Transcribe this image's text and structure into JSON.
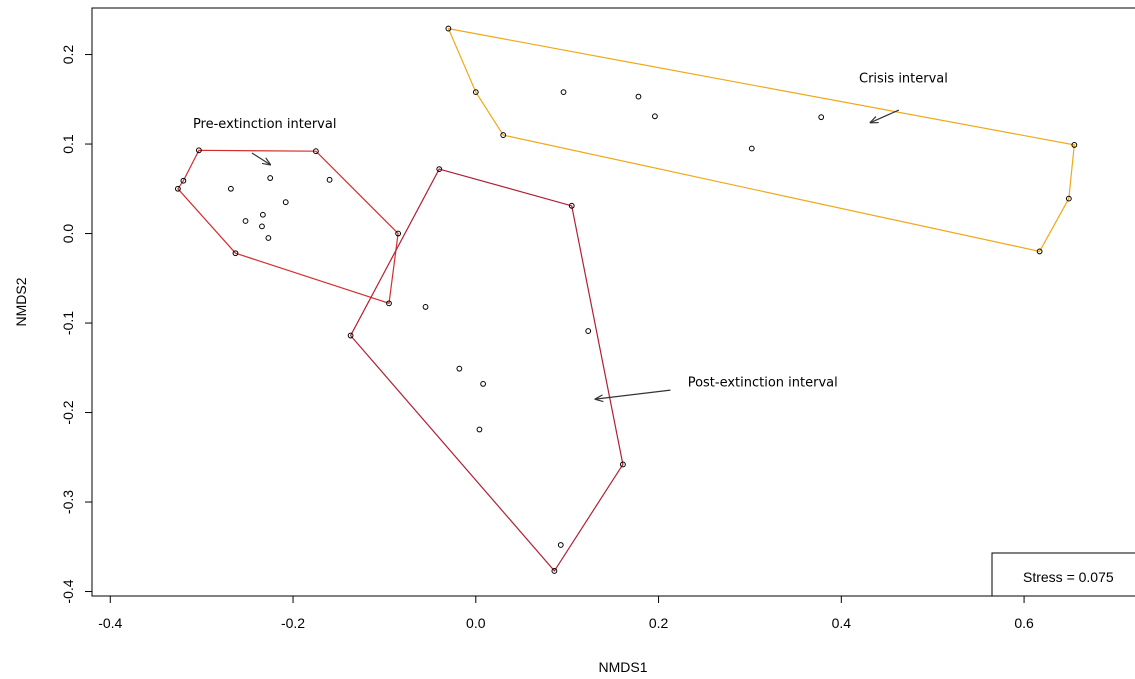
{
  "chart_data": {
    "type": "scatter",
    "title": "",
    "xlabel": "NMDS1",
    "ylabel": "NMDS2",
    "xlim": [
      -0.42,
      0.74
    ],
    "ylim": [
      -0.405,
      0.252
    ],
    "x_ticks": [
      -0.4,
      -0.2,
      0.0,
      0.2,
      0.4,
      0.6
    ],
    "x_tick_labels": [
      "-0.4",
      "-0.2",
      "0.0",
      "0.2",
      "0.4",
      "0.6"
    ],
    "y_ticks": [
      -0.4,
      -0.3,
      -0.2,
      -0.1,
      0.0,
      0.1,
      0.2
    ],
    "y_tick_labels": [
      "-0.4",
      "-0.3",
      "-0.2",
      "-0.1",
      "0.0",
      "0.1",
      "0.2"
    ],
    "grid": false,
    "stress_label": "Stress = 0.075",
    "series": [
      {
        "label": "Pre-extinction interval",
        "hull_color": "#d32f2f",
        "points": [
          [
            -0.326,
            0.05
          ],
          [
            -0.32,
            0.059
          ],
          [
            -0.303,
            0.093
          ],
          [
            -0.175,
            0.092
          ],
          [
            -0.085,
            0.0
          ],
          [
            -0.095,
            -0.078
          ],
          [
            -0.263,
            -0.022
          ],
          [
            -0.268,
            0.05
          ],
          [
            -0.252,
            0.014
          ],
          [
            -0.233,
            0.021
          ],
          [
            -0.234,
            0.008
          ],
          [
            -0.227,
            -0.005
          ],
          [
            -0.225,
            0.062
          ],
          [
            -0.208,
            0.035
          ],
          [
            -0.16,
            0.06
          ]
        ],
        "hull": [
          [
            -0.326,
            0.05
          ],
          [
            -0.32,
            0.059
          ],
          [
            -0.303,
            0.093
          ],
          [
            -0.175,
            0.092
          ],
          [
            -0.085,
            0.0
          ],
          [
            -0.095,
            -0.078
          ],
          [
            -0.263,
            -0.022
          ]
        ]
      },
      {
        "label": "Crisis interval",
        "hull_color": "#f0a818",
        "points": [
          [
            -0.03,
            0.229
          ],
          [
            0.655,
            0.099
          ],
          [
            0.649,
            0.039
          ],
          [
            0.617,
            -0.02
          ],
          [
            0.03,
            0.11
          ],
          [
            0.0,
            0.158
          ],
          [
            0.096,
            0.158
          ],
          [
            0.178,
            0.153
          ],
          [
            0.196,
            0.131
          ],
          [
            0.302,
            0.095
          ],
          [
            0.378,
            0.13
          ]
        ],
        "hull": [
          [
            -0.03,
            0.229
          ],
          [
            0.655,
            0.099
          ],
          [
            0.649,
            0.039
          ],
          [
            0.617,
            -0.02
          ],
          [
            0.03,
            0.11
          ],
          [
            0.0,
            0.158
          ]
        ]
      },
      {
        "label": "Post-extinction interval",
        "hull_color": "#b02035",
        "points": [
          [
            -0.04,
            0.072
          ],
          [
            0.105,
            0.031
          ],
          [
            0.161,
            -0.258
          ],
          [
            0.086,
            -0.377
          ],
          [
            -0.137,
            -0.114
          ],
          [
            -0.055,
            -0.082
          ],
          [
            -0.018,
            -0.151
          ],
          [
            0.008,
            -0.168
          ],
          [
            0.004,
            -0.219
          ],
          [
            0.123,
            -0.109
          ],
          [
            0.093,
            -0.348
          ]
        ],
        "hull": [
          [
            -0.04,
            0.072
          ],
          [
            0.105,
            0.031
          ],
          [
            0.161,
            -0.258
          ],
          [
            0.086,
            -0.377
          ],
          [
            -0.137,
            -0.114
          ]
        ]
      }
    ],
    "annotations": [
      {
        "text": "Pre-extinction interval",
        "text_pos": [
          -0.231,
          0.118
        ],
        "arrow_from": [
          -0.245,
          0.09
        ],
        "arrow_to": [
          -0.225,
          0.077
        ]
      },
      {
        "text": "Crisis interval",
        "text_pos": [
          0.468,
          0.169
        ],
        "arrow_from": [
          0.463,
          0.138
        ],
        "arrow_to": [
          0.432,
          0.124
        ]
      },
      {
        "text": "Post-extinction interval",
        "text_pos": [
          0.314,
          -0.171
        ],
        "arrow_from": [
          0.213,
          -0.175
        ],
        "arrow_to": [
          0.131,
          -0.185
        ]
      }
    ]
  }
}
